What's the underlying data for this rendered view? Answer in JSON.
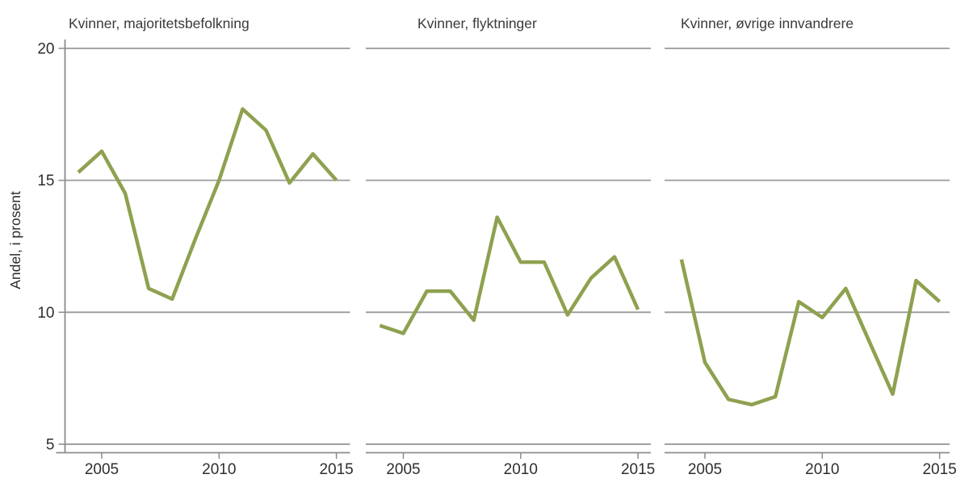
{
  "chart_data": {
    "type": "line",
    "ylabel": "Andel, i prosent",
    "x": [
      2004,
      2005,
      2006,
      2007,
      2008,
      2009,
      2010,
      2011,
      2012,
      2013,
      2014,
      2015
    ],
    "x_ticks": [
      2005,
      2010,
      2015
    ],
    "y_ticks": [
      20,
      15,
      10,
      5
    ],
    "ylim": [
      4.6,
      20
    ],
    "grid": "horizontal gridlines at each y tick",
    "legend": "none",
    "panels": [
      {
        "title": "Kvinner, majoritetsbefolkning",
        "values": [
          15.3,
          16.1,
          14.5,
          10.9,
          10.5,
          12.8,
          15.0,
          17.7,
          16.9,
          14.9,
          16.0,
          15.0
        ]
      },
      {
        "title": "Kvinner, flyktninger",
        "values": [
          9.5,
          9.2,
          10.8,
          10.8,
          9.7,
          13.6,
          11.9,
          11.9,
          9.9,
          11.3,
          12.1,
          10.1
        ]
      },
      {
        "title": "Kvinner, øvrige innvandrere",
        "values": [
          12.0,
          8.1,
          6.7,
          6.5,
          6.8,
          10.4,
          9.8,
          10.9,
          8.9,
          6.9,
          11.2,
          10.4
        ]
      }
    ],
    "colors": {
      "line": "#8EA14F",
      "grid": "#9A9A9A",
      "axis": "#8C8C8C",
      "text": "#2E2E2E",
      "title": "#3A3A3A",
      "background": "#FFFFFF"
    }
  }
}
